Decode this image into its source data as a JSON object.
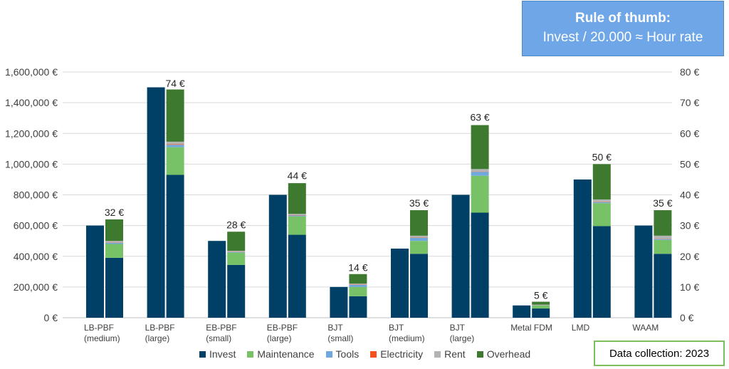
{
  "info_box": {
    "title": "Rule of thumb:",
    "text": "Invest / 20.000 ≈ Hour rate"
  },
  "footer_box": {
    "text": "Data collection: 2023"
  },
  "chart_data": {
    "type": "bar",
    "categories": [
      [
        "LB-PBF",
        "(medium)"
      ],
      [
        "LB-PBF",
        "(large)"
      ],
      [
        "EB-PBF",
        "(small)"
      ],
      [
        "EB-PBF",
        "(large)"
      ],
      [
        "BJT",
        "(small)"
      ],
      [
        "BJT",
        "(medium)"
      ],
      [
        "BJT",
        "(large)"
      ],
      [
        "Metal FDM"
      ],
      [
        "LMD"
      ],
      [
        "WAAM"
      ]
    ],
    "left_axis": {
      "ylim": [
        0,
        1600000
      ],
      "ticks": [
        "0 €",
        "200,000 €",
        "400,000 €",
        "600,000 €",
        "800,000 €",
        "1,000,000 €",
        "1,200,000 €",
        "1,400,000 €",
        "1,600,000 €"
      ]
    },
    "right_axis": {
      "ylim": [
        0,
        80
      ],
      "ticks": [
        "0 €",
        "10 €",
        "20 €",
        "30 €",
        "40 €",
        "50 €",
        "60 €",
        "70 €",
        "80 €"
      ]
    },
    "invest_series": {
      "name": "Invest",
      "axis": "left",
      "values": [
        600000,
        1500000,
        500000,
        800000,
        200000,
        450000,
        800000,
        80000,
        900000,
        600000
      ]
    },
    "stack_series": [
      {
        "name": "Invest",
        "color": "#003f66",
        "values": [
          19.5,
          46.5,
          17.2,
          27,
          7,
          20.8,
          34.2,
          3,
          29.8,
          20.8
        ]
      },
      {
        "name": "Maintenance",
        "color": "#77c266",
        "values": [
          4.5,
          9,
          4,
          6,
          3,
          4.2,
          12,
          1,
          7.5,
          4.5
        ]
      },
      {
        "name": "Tools",
        "color": "#6fa8dc",
        "values": [
          0.4,
          0.8,
          0.2,
          0.3,
          0.7,
          1,
          1.3,
          0.1,
          0.3,
          0.3
        ]
      },
      {
        "name": "Electricity",
        "color": "#f4511e",
        "values": [
          0.1,
          0.2,
          0.1,
          0.1,
          0.1,
          0.1,
          0.1,
          0.05,
          0.1,
          0.1
        ]
      },
      {
        "name": "Rent",
        "color": "#b3b3b3",
        "values": [
          0.5,
          0.8,
          0.3,
          0.4,
          0.3,
          0.6,
          0.8,
          0.1,
          0.8,
          1
        ]
      },
      {
        "name": "Overhead",
        "color": "#3d7a2f",
        "values": [
          7,
          17,
          6.2,
          10,
          3.1,
          8.3,
          14.3,
          0.95,
          11.5,
          8.3
        ]
      }
    ],
    "totals": [
      {
        "value": 32,
        "label": "32 €"
      },
      {
        "value": 74,
        "label": "74 €"
      },
      {
        "value": 28,
        "label": "28 €"
      },
      {
        "value": 44,
        "label": "44 €"
      },
      {
        "value": 14,
        "label": "14 €"
      },
      {
        "value": 35,
        "label": "35 €"
      },
      {
        "value": 63,
        "label": "63 €"
      },
      {
        "value": 5,
        "label": "5 €"
      },
      {
        "value": 50,
        "label": "50 €"
      },
      {
        "value": 35,
        "label": "35 €"
      }
    ],
    "legend": {
      "placement": "bottom",
      "items": [
        {
          "name": "Invest",
          "color": "#003f66"
        },
        {
          "name": "Maintenance",
          "color": "#77c266"
        },
        {
          "name": "Tools",
          "color": "#6fa8dc"
        },
        {
          "name": "Electricity",
          "color": "#f4511e"
        },
        {
          "name": "Rent",
          "color": "#b3b3b3"
        },
        {
          "name": "Overhead",
          "color": "#3d7a2f"
        }
      ]
    },
    "grid": "horizontal"
  }
}
